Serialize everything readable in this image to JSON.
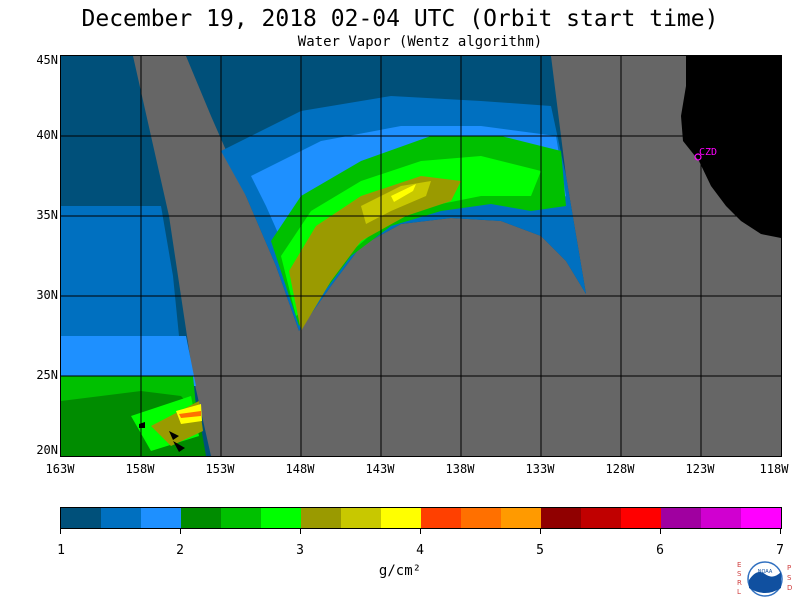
{
  "title": "December 19, 2018  02-04 UTC  (Orbit start time)",
  "subtitle": "Water Vapor (Wentz algorithm)",
  "lat_labels": [
    "45N",
    "40N",
    "35N",
    "30N",
    "25N",
    "20N"
  ],
  "lon_labels": [
    "163W",
    "158W",
    "153W",
    "148W",
    "143W",
    "138W",
    "133W",
    "128W",
    "123W",
    "118W"
  ],
  "station_label": "CZD",
  "colorbar": {
    "ticks": [
      "1",
      "2",
      "3",
      "4",
      "5",
      "6",
      "7"
    ],
    "units": "g/cm²",
    "colors": [
      "#00507a",
      "#0070c0",
      "#1e90ff",
      "#008c00",
      "#00c000",
      "#00ff00",
      "#9a9a00",
      "#c8c800",
      "#ffff00",
      "#ff4000",
      "#ff7000",
      "#ff9a00",
      "#900000",
      "#c00000",
      "#ff0000",
      "#a000a0",
      "#d000d0",
      "#ff00ff"
    ]
  },
  "colors": {
    "no_data": "#666666",
    "land": "#000000",
    "station": "#ff00ff"
  },
  "logo": {
    "left_letters": [
      "E",
      "S",
      "R",
      "L"
    ],
    "right_letters": [
      "P",
      "S",
      "D"
    ],
    "text": "NOAA"
  }
}
